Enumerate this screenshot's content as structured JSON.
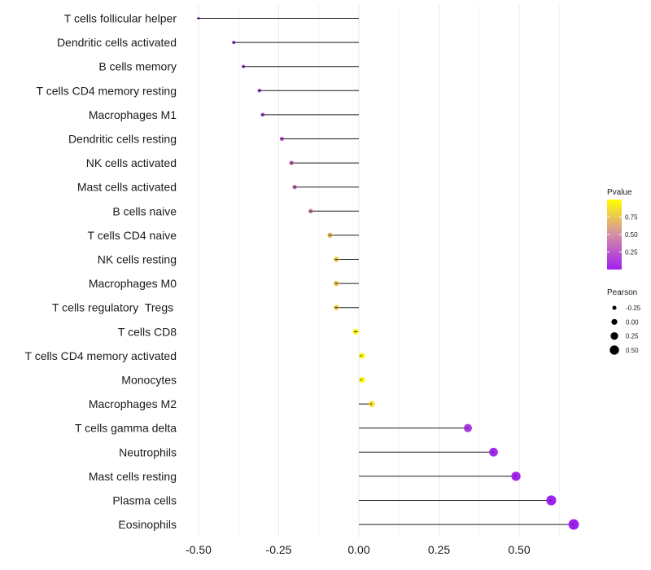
{
  "chart_data": {
    "type": "lollipop",
    "title": "",
    "xlabel": "",
    "ylabel": "",
    "xlim": [
      -0.5,
      0.68
    ],
    "x_ticks": [
      -0.5,
      -0.25,
      0.0,
      0.25,
      0.5
    ],
    "x_tick_labels": [
      "-0.50",
      "-0.25",
      "0.00",
      "0.25",
      "0.50"
    ],
    "grid": "vertical",
    "points": [
      {
        "category": "T cells follicular helper",
        "pearson": -0.5,
        "pvalue": 0.0
      },
      {
        "category": "Dendritic cells activated",
        "pearson": -0.39,
        "pvalue": 0.05
      },
      {
        "category": "B cells memory",
        "pearson": -0.36,
        "pvalue": 0.08
      },
      {
        "category": "T cells CD4 memory resting",
        "pearson": -0.31,
        "pvalue": 0.15
      },
      {
        "category": "Macrophages M1",
        "pearson": -0.3,
        "pvalue": 0.16
      },
      {
        "category": "Dendritic cells resting",
        "pearson": -0.24,
        "pvalue": 0.27
      },
      {
        "category": "NK cells activated",
        "pearson": -0.21,
        "pvalue": 0.32
      },
      {
        "category": "Mast cells activated",
        "pearson": -0.2,
        "pvalue": 0.35
      },
      {
        "category": "B cells naive",
        "pearson": -0.15,
        "pvalue": 0.48
      },
      {
        "category": "T cells CD4 naive",
        "pearson": -0.09,
        "pvalue": 0.7
      },
      {
        "category": "NK cells resting",
        "pearson": -0.07,
        "pvalue": 0.75
      },
      {
        "category": "Macrophages M0",
        "pearson": -0.07,
        "pvalue": 0.75
      },
      {
        "category": "T cells regulatory  Tregs ",
        "pearson": -0.07,
        "pvalue": 0.75
      },
      {
        "category": "T cells CD8",
        "pearson": -0.01,
        "pvalue": 0.97
      },
      {
        "category": "T cells CD4 memory activated",
        "pearson": 0.01,
        "pvalue": 0.96
      },
      {
        "category": "Monocytes",
        "pearson": 0.01,
        "pvalue": 0.96
      },
      {
        "category": "Macrophages M2",
        "pearson": 0.04,
        "pvalue": 0.85
      },
      {
        "category": "T cells gamma delta",
        "pearson": 0.34,
        "pvalue": 0.11
      },
      {
        "category": "Neutrophils",
        "pearson": 0.42,
        "pvalue": 0.04
      },
      {
        "category": "Mast cells resting",
        "pearson": 0.49,
        "pvalue": 0.02
      },
      {
        "category": "Plasma cells",
        "pearson": 0.6,
        "pvalue": 0.01
      },
      {
        "category": "Eosinophils",
        "pearson": 0.67,
        "pvalue": 0.0
      }
    ],
    "color_legend": {
      "title": "Pvalue",
      "ticks": [
        0.25,
        0.5,
        0.75
      ],
      "tick_labels": [
        "0.25",
        "0.50",
        "0.75"
      ],
      "range": [
        0.0,
        1.0
      ],
      "low_color": "#a020f0",
      "mid_color": "#d68fa5",
      "high_color": "#ffff00",
      "placement": "right"
    },
    "size_legend": {
      "title": "Pearson",
      "values": [
        -0.25,
        0.0,
        0.25,
        0.5
      ],
      "labels": [
        "-0.25",
        "0.00",
        "0.25",
        "0.50"
      ],
      "placement": "right"
    },
    "line_color": "#1a1a1a",
    "grid_color": "#ebebeb"
  }
}
